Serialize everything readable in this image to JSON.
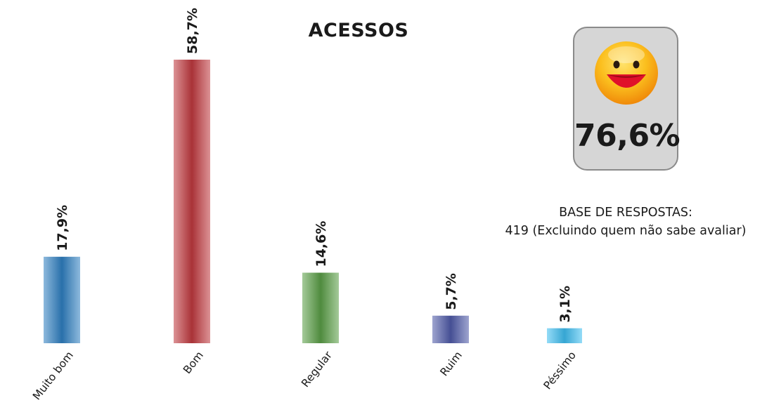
{
  "chart_data": {
    "type": "bar",
    "title": "ACESSOS",
    "categories": [
      "Muito bom",
      "Bom",
      "Regular",
      "Ruim",
      "Péssimo"
    ],
    "values": [
      17.9,
      58.7,
      14.6,
      5.7,
      3.1
    ],
    "value_labels": [
      "17,9%",
      "58,7%",
      "14,6%",
      "5,7%",
      "3,1%"
    ],
    "colors": [
      "#2f7fc1",
      "#c0393e",
      "#5a9e46",
      "#4e5aa8",
      "#3dbdf0"
    ],
    "ylim": [
      0,
      58.7
    ],
    "grid": false,
    "legend": "none"
  },
  "badge": {
    "value": "76,6%",
    "icon": "smiley-face-icon"
  },
  "base": {
    "line1": "BASE DE RESPOSTAS:",
    "line2": "419 (Excluindo quem não sabe avaliar)"
  }
}
